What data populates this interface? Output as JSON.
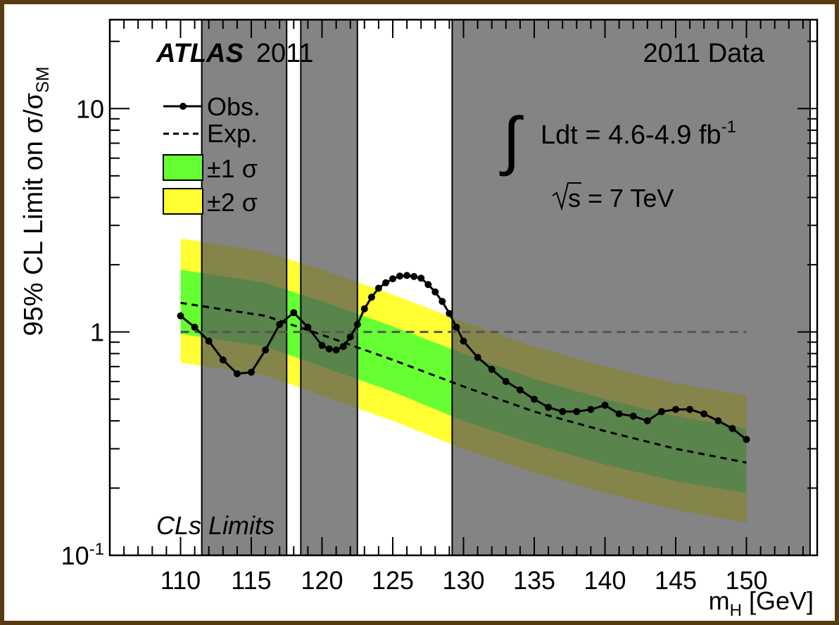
{
  "chart_data": {
    "type": "line",
    "experiment": "ATLAS",
    "year": "2011",
    "dataset_label": "2011 Data",
    "luminosity_label": "Ldt = 4.6-4.9 fb",
    "luminosity_exponent": "-1",
    "energy_label": "s = 7 TeV",
    "method_label": "CLs Limits",
    "ylabel_main": "95% CL Limit on σ/σ",
    "ylabel_sub": "SM",
    "xlabel_main": "m",
    "xlabel_sub": "H",
    "xlabel_unit": " [GeV]",
    "x_scale": "linear",
    "y_scale": "log",
    "xlim": [
      105,
      155
    ],
    "ylim": [
      0.1,
      25
    ],
    "x_ticks": [
      "110",
      "115",
      "120",
      "125",
      "130",
      "135",
      "140",
      "145",
      "150"
    ],
    "y_ticks": [
      {
        "value": 10,
        "label": "10",
        "exp": ""
      },
      {
        "value": 1,
        "label": "1",
        "exp": ""
      },
      {
        "value": 0.1,
        "label": "10",
        "exp": "-1"
      }
    ],
    "legend": [
      {
        "key": "obs",
        "label": "Obs."
      },
      {
        "key": "exp",
        "label": "Exp."
      },
      {
        "key": "band1",
        "label": "±1 σ"
      },
      {
        "key": "band2",
        "label": "±2 σ"
      }
    ],
    "colors": {
      "band1": "#66ff33",
      "band2": "#ffff33",
      "excluded_region": "#555555",
      "observed": "#000000",
      "expected": "#000000",
      "sm_line": "#555555"
    },
    "reference_line_y": 1,
    "excluded_regions": [
      [
        111.5,
        117.5
      ],
      [
        118.5,
        122.5
      ],
      [
        129.2,
        154.5
      ]
    ],
    "expected_band": {
      "x": [
        110,
        116,
        120,
        125,
        130,
        135,
        140,
        145,
        150
      ],
      "minus2": [
        0.73,
        0.64,
        0.52,
        0.4,
        0.3,
        0.235,
        0.19,
        0.16,
        0.14
      ],
      "minus1": [
        0.98,
        0.86,
        0.7,
        0.54,
        0.4,
        0.315,
        0.255,
        0.215,
        0.19
      ],
      "median": [
        1.35,
        1.18,
        0.97,
        0.75,
        0.57,
        0.44,
        0.36,
        0.3,
        0.26
      ],
      "plus1": [
        1.9,
        1.66,
        1.37,
        1.06,
        0.8,
        0.615,
        0.5,
        0.42,
        0.37
      ],
      "plus2": [
        2.62,
        2.28,
        1.9,
        1.47,
        1.11,
        0.86,
        0.7,
        0.59,
        0.52
      ]
    },
    "observed": {
      "x": [
        110,
        111,
        112,
        113,
        114,
        115,
        116,
        117,
        118,
        119,
        120,
        120.5,
        121,
        121.5,
        122,
        122.5,
        123,
        123.5,
        124,
        124.5,
        125,
        125.5,
        126,
        126.5,
        127,
        127.5,
        128,
        128.5,
        129,
        129.5,
        130,
        131,
        132,
        133,
        134,
        135,
        136,
        137,
        138,
        139,
        140,
        141,
        142,
        143,
        144,
        145,
        146,
        147,
        148,
        149,
        150
      ],
      "y": [
        1.18,
        1.05,
        0.91,
        0.75,
        0.65,
        0.66,
        0.83,
        1.08,
        1.22,
        1.05,
        0.87,
        0.84,
        0.83,
        0.86,
        0.95,
        1.08,
        1.27,
        1.43,
        1.57,
        1.66,
        1.73,
        1.78,
        1.79,
        1.77,
        1.74,
        1.63,
        1.51,
        1.37,
        1.21,
        1.05,
        0.91,
        0.77,
        0.68,
        0.6,
        0.55,
        0.5,
        0.46,
        0.44,
        0.44,
        0.45,
        0.47,
        0.43,
        0.42,
        0.4,
        0.44,
        0.45,
        0.45,
        0.43,
        0.4,
        0.37,
        0.33
      ]
    }
  }
}
